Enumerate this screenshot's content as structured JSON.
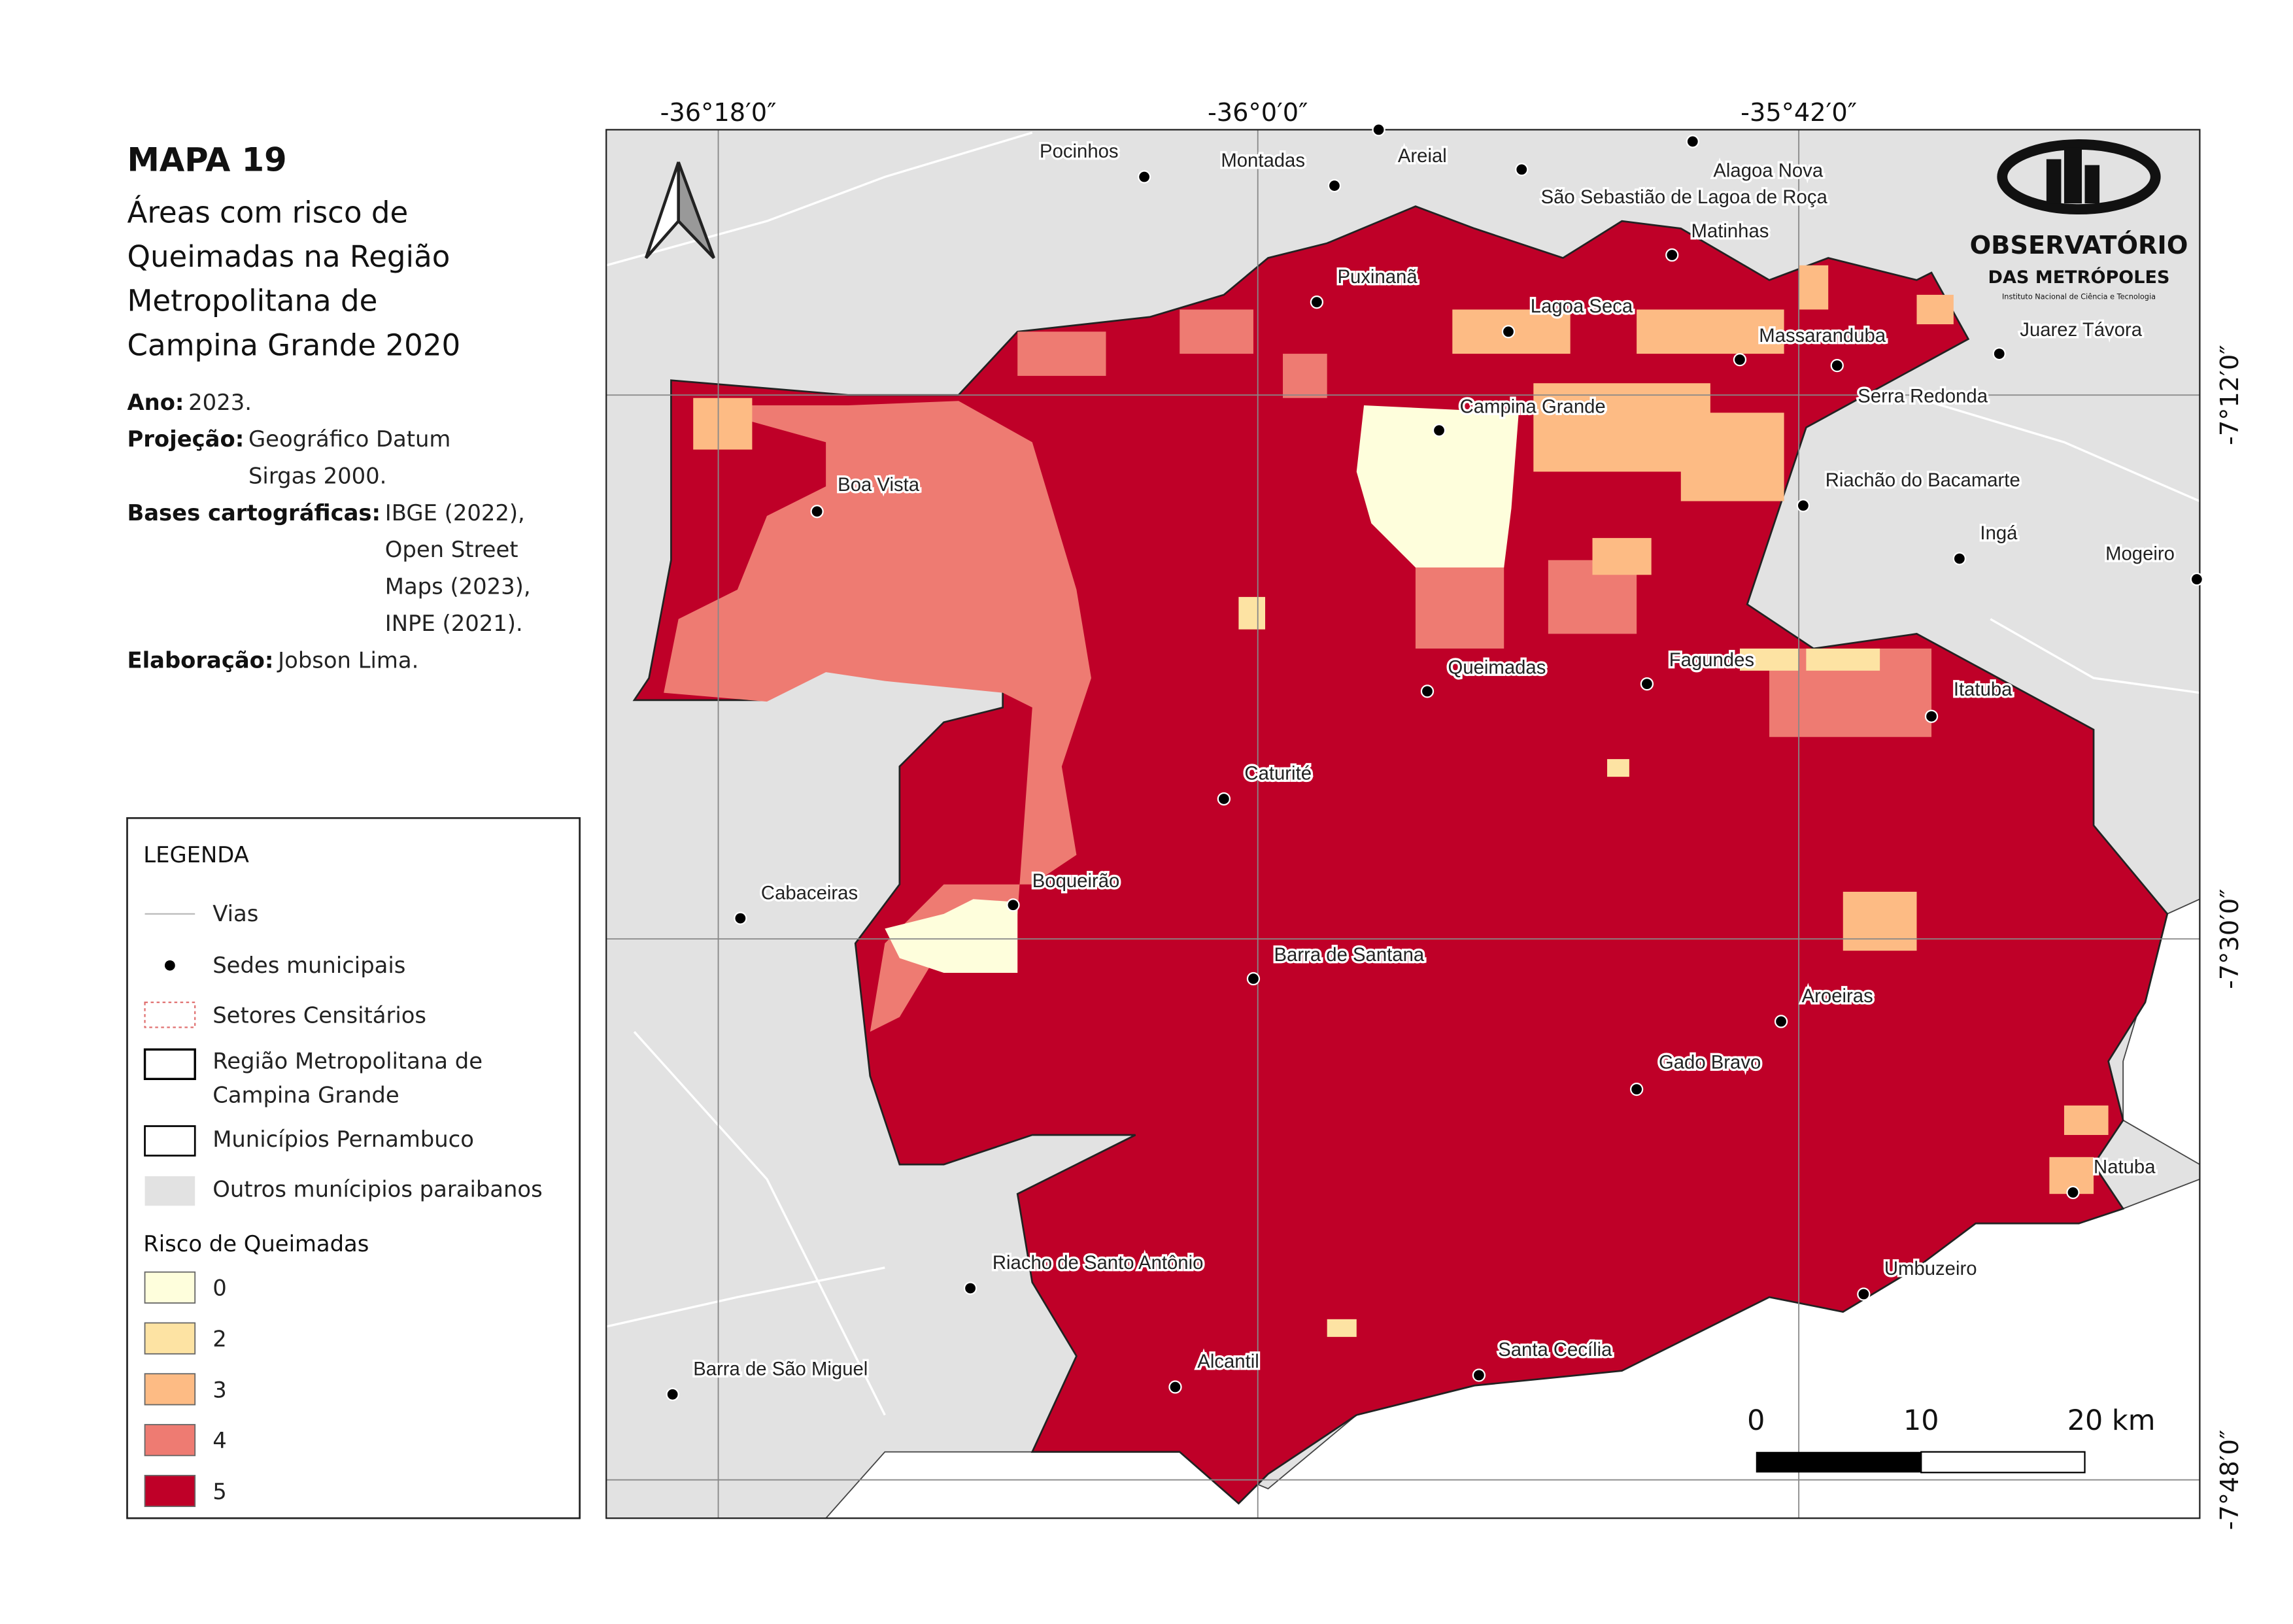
{
  "header": {
    "map_number": "MAPA 19",
    "title_lines": [
      "Áreas com risco de",
      "Queimadas na Região",
      "Metropolitana de",
      "Campina Grande 2020"
    ]
  },
  "info": [
    {
      "label": "Ano:",
      "lines": [
        "2023."
      ]
    },
    {
      "label": "Projeção:",
      "lines": [
        "Geográfico Datum",
        "Sirgas 2000."
      ]
    },
    {
      "label": "Bases cartográficas:",
      "lines": [
        "IBGE (2022),",
        "Open Street",
        "Maps (2023),",
        "INPE (2021)."
      ]
    },
    {
      "label": "Elaboração:",
      "lines": [
        "Jobson Lima."
      ]
    }
  ],
  "legend": {
    "title": "LEGENDA",
    "items": [
      [
        "Vias"
      ],
      [
        "Sedes municipais"
      ],
      [
        "Setores Censitários"
      ],
      [
        "Região Metropolitana de",
        "Campina Grande"
      ],
      [
        "Municípios Pernambuco"
      ],
      [
        "Outros munícipios paraibanos"
      ]
    ],
    "risk_title": "Risco de Queimadas",
    "classes": [
      {
        "label": "0",
        "color": "#fefedc"
      },
      {
        "label": "2",
        "color": "#fde3a3"
      },
      {
        "label": "3",
        "color": "#fdbb84"
      },
      {
        "label": "4",
        "color": "#ee7b72"
      },
      {
        "label": "5",
        "color": "#bf0028"
      }
    ]
  },
  "coords": {
    "top": [
      "-36°18′0″",
      "-36°0′0″",
      "-35°42′0″"
    ],
    "right": [
      "-7°12′0″",
      "-7°30′0″",
      "-7°48′0″"
    ]
  },
  "places": [
    "Pocinhos",
    "Montadas",
    "Areial",
    "Alagoa Nova",
    "São Sebastião de Lagoa de Roça",
    "Matinhas",
    "Puxinanã",
    "Lagoa Seca",
    "Massaranduba",
    "Juarez Távora",
    "Serra Redonda",
    "Campina Grande",
    "Boa Vista",
    "Riachão do Bacamarte",
    "Ingá",
    "Mogeiro",
    "Queimadas",
    "Fagundes",
    "Itatuba",
    "Caturité",
    "Cabaceiras",
    "Boqueirão",
    "Barra de Santana",
    "Aroeiras",
    "Gado Bravo",
    "Natuba",
    "Riacho de Santo Antônio",
    "Umbuzeiro",
    "Alcantil",
    "Santa Cecília",
    "Barra de São Miguel"
  ],
  "logo": {
    "name": "OBSERVATÓRIO",
    "sub": "DAS METRÓPOLES",
    "tagline": "Instituto Nacional de Ciência e Tecnologia"
  },
  "scale_bar": [
    "0",
    "10",
    "20 km"
  ]
}
